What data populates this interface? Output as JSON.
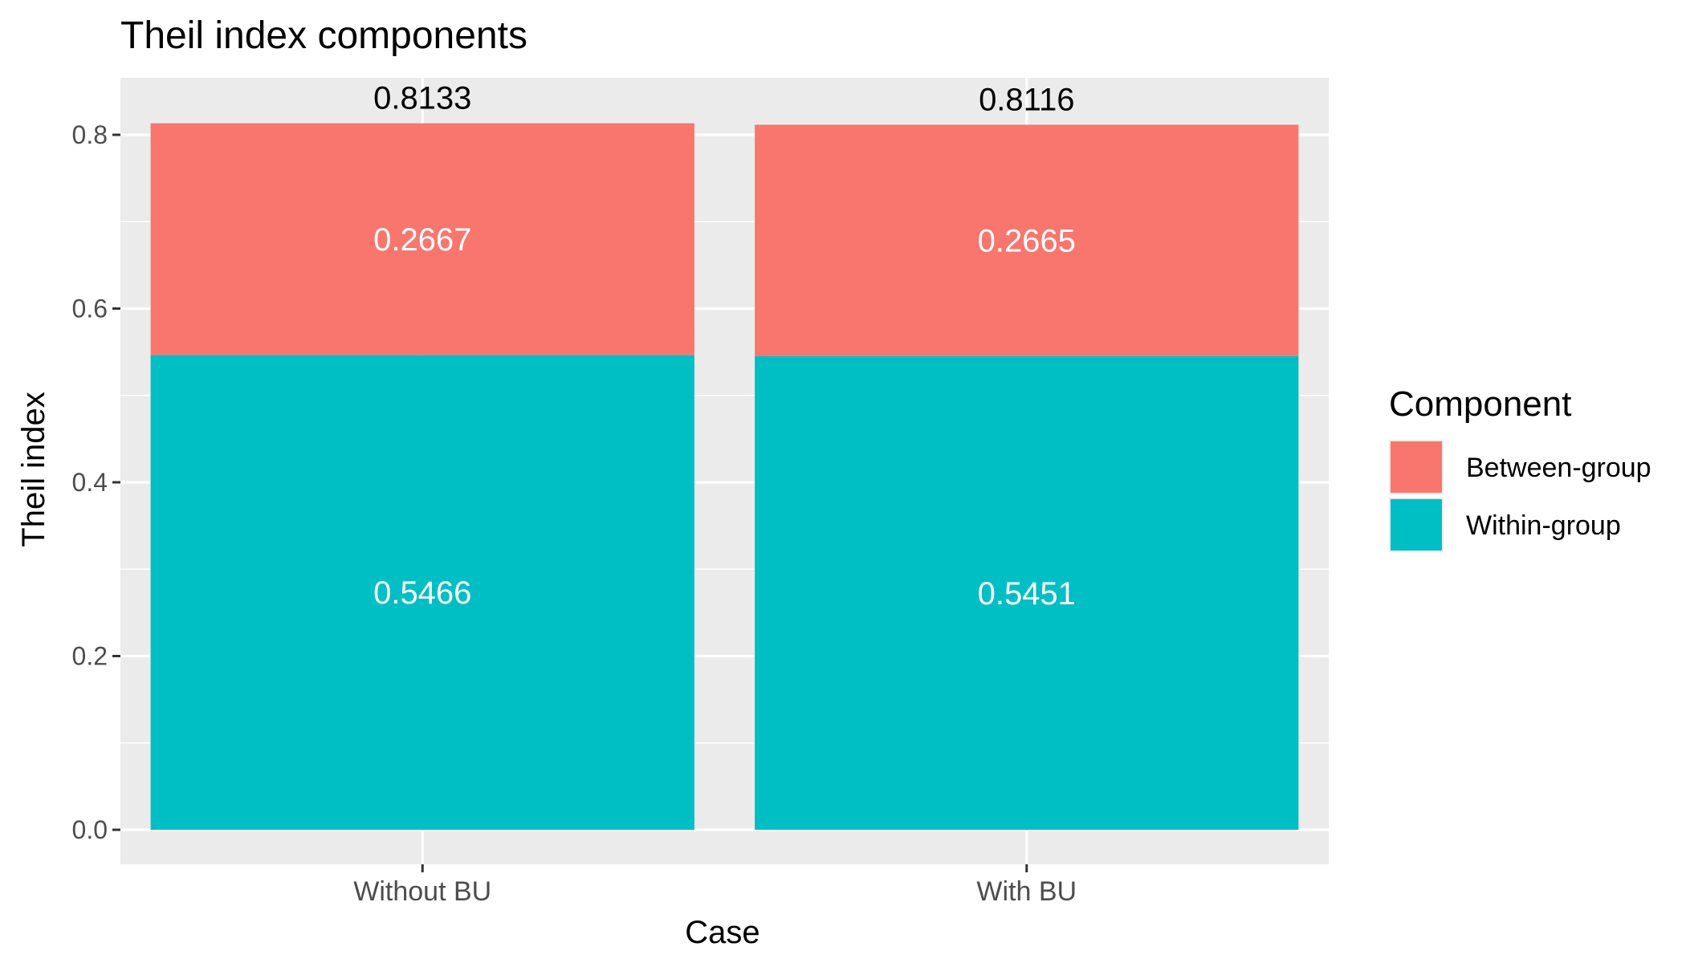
{
  "chart_data": {
    "type": "bar",
    "stacked": true,
    "title": "Theil index components",
    "xlabel": "Case",
    "ylabel": "Theil index",
    "categories": [
      "Without BU",
      "With BU"
    ],
    "series": [
      {
        "name": "Within-group",
        "color": "#00BFC4",
        "values": [
          0.5466,
          0.5451
        ],
        "labels": [
          "0.5466",
          "0.5451"
        ]
      },
      {
        "name": "Between-group",
        "color": "#F8766D",
        "values": [
          0.2667,
          0.2665
        ],
        "labels": [
          "0.2667",
          "0.2665"
        ]
      }
    ],
    "totals": [
      0.8133,
      0.8116
    ],
    "total_labels": [
      "0.8133",
      "0.8116"
    ],
    "ylim": [
      -0.04,
      0.84
    ],
    "yticks": [
      0.0,
      0.2,
      0.4,
      0.6,
      0.8
    ],
    "ytick_labels": [
      "0.0",
      "0.2",
      "0.4",
      "0.6",
      "0.8"
    ],
    "grid": true,
    "legend": {
      "title": "Component",
      "placement": "right",
      "entries": [
        "Between-group",
        "Within-group"
      ]
    },
    "colors": {
      "panel_background": "#EBEBEB",
      "grid": "#FFFFFF",
      "axis_text": "#4D4D4D",
      "title_text": "#000000",
      "inner_label_text": "#FFFFFF"
    }
  }
}
